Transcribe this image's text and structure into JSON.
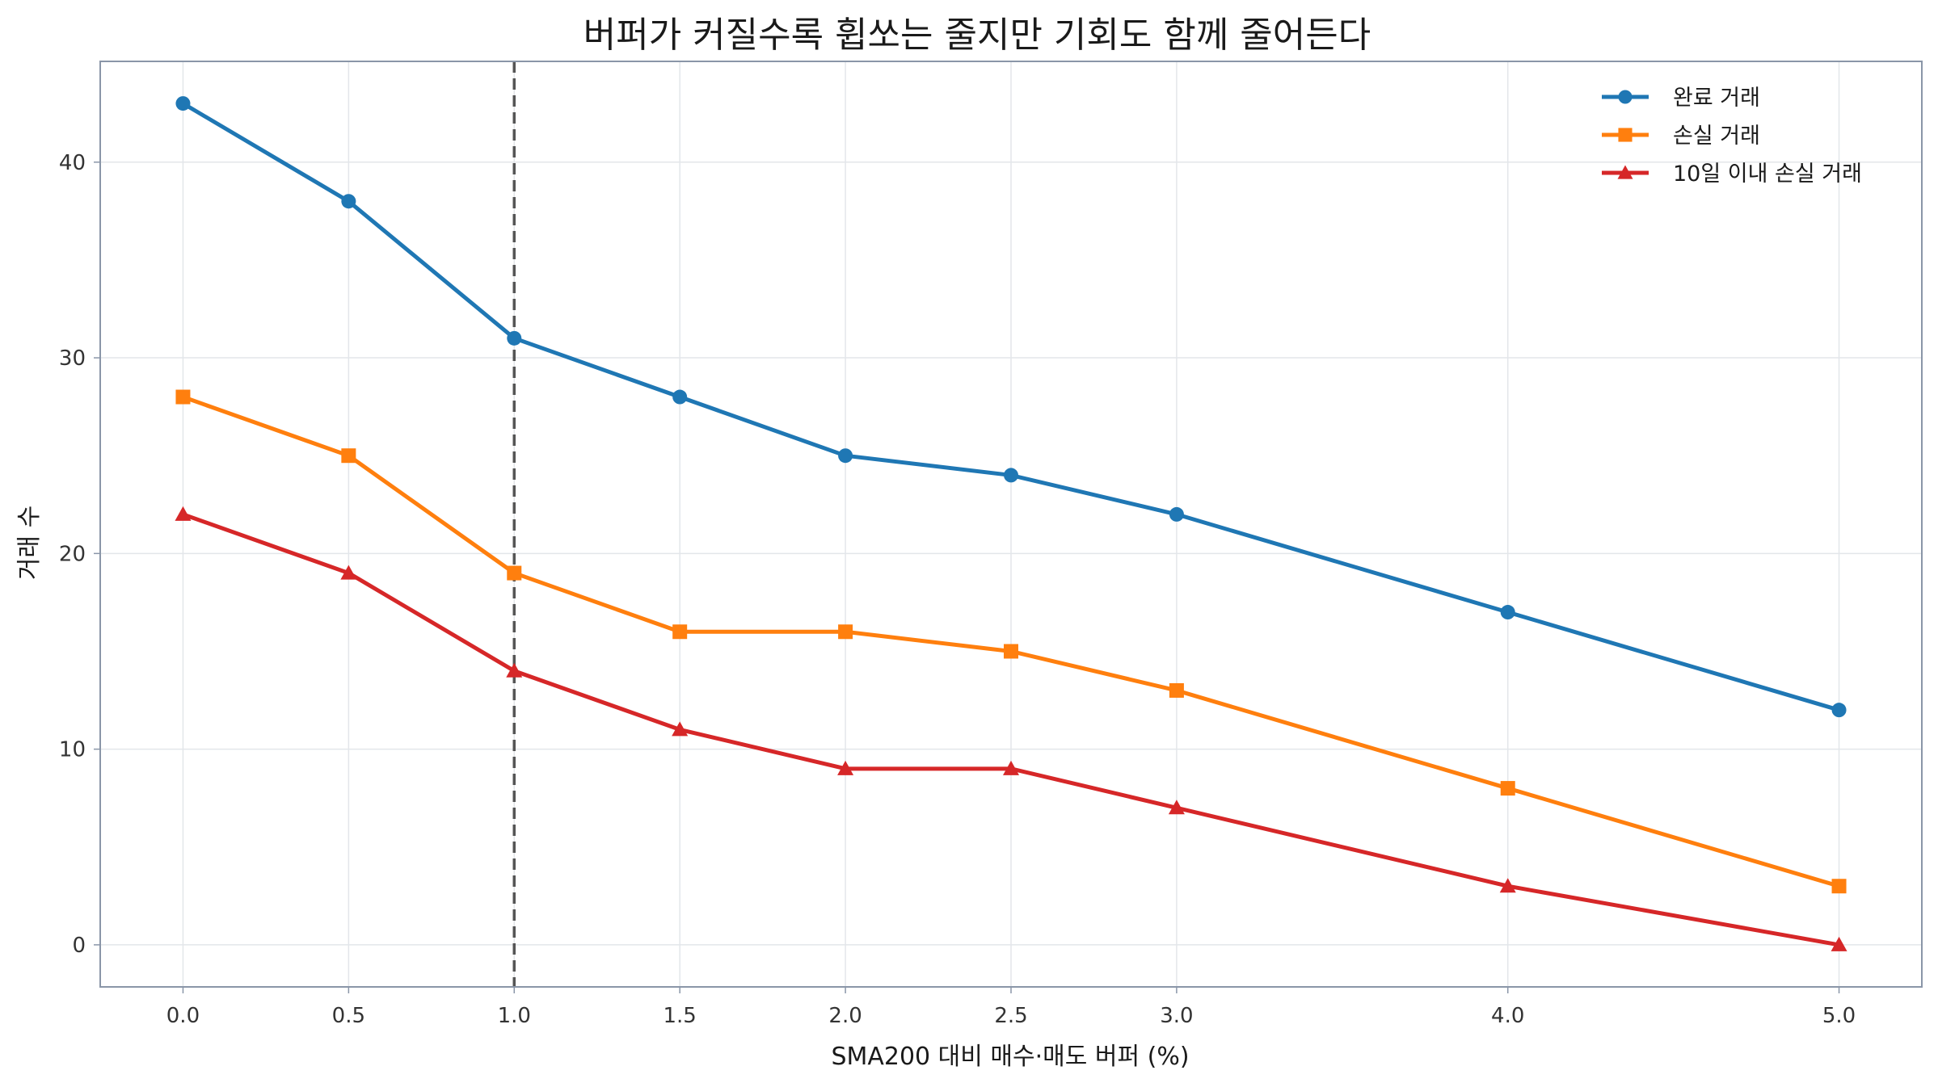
{
  "chart_data": {
    "type": "line",
    "title": "버퍼가 커질수록 휩쏘는 줄지만 기회도 함께 줄어든다",
    "xlabel": "SMA200 대비 매수·매도 버퍼 (%)",
    "ylabel": "거래 수",
    "x": [
      0.0,
      0.5,
      1.0,
      1.5,
      2.0,
      2.5,
      3.0,
      4.0,
      5.0
    ],
    "x_tick_labels": [
      "0.0",
      "0.5",
      "1.0",
      "1.5",
      "2.0",
      "2.5",
      "3.0",
      "4.0",
      "5.0"
    ],
    "y_ticks": [
      0,
      10,
      20,
      30,
      40
    ],
    "y_tick_labels": [
      "0",
      "10",
      "20",
      "30",
      "40"
    ],
    "xlim": [
      -0.25,
      5.25
    ],
    "ylim": [
      -2.15,
      45.15
    ],
    "grid": true,
    "legend_position": "top-right",
    "reference_line": {
      "x": 1.0,
      "style": "dashed",
      "color": "#555555"
    },
    "series": [
      {
        "name": "완료 거래",
        "color": "#1f77b4",
        "marker": "circle",
        "values": [
          43,
          38,
          31,
          28,
          25,
          24,
          22,
          17,
          12
        ]
      },
      {
        "name": "손실 거래",
        "color": "#ff7f0e",
        "marker": "square",
        "values": [
          28,
          25,
          19,
          16,
          16,
          15,
          13,
          8,
          3
        ]
      },
      {
        "name": "10일 이내 손실 거래",
        "color": "#d62728",
        "marker": "triangle",
        "values": [
          22,
          19,
          14,
          11,
          9,
          9,
          7,
          3,
          0
        ]
      }
    ]
  }
}
